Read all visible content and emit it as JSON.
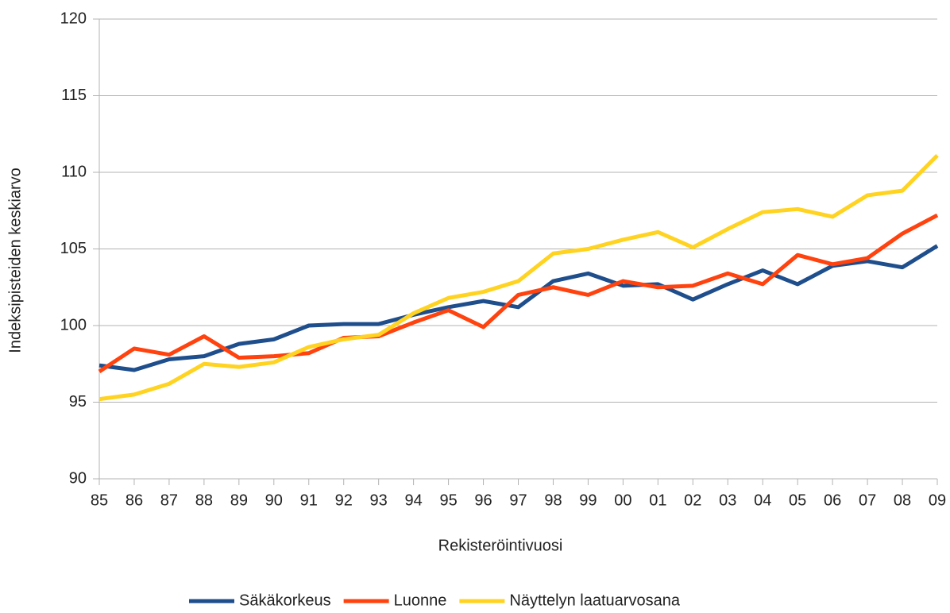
{
  "chart_data": {
    "type": "line",
    "x_label": "Rekisteröintivuosi",
    "y_label": "Indeksipisteiden keskiarvo",
    "categories": [
      "85",
      "86",
      "87",
      "88",
      "89",
      "90",
      "91",
      "92",
      "93",
      "94",
      "95",
      "96",
      "97",
      "98",
      "99",
      "00",
      "01",
      "02",
      "03",
      "04",
      "05",
      "06",
      "07",
      "08",
      "09"
    ],
    "series": [
      {
        "name": "Säkäkorkeus",
        "color": "#1f4e8c",
        "values": [
          97.4,
          97.1,
          97.8,
          98.0,
          98.8,
          99.1,
          100.0,
          100.1,
          100.1,
          100.7,
          101.2,
          101.6,
          101.2,
          102.9,
          103.4,
          102.6,
          102.7,
          101.7,
          102.7,
          103.6,
          102.7,
          103.9,
          104.2,
          103.8,
          105.2
        ]
      },
      {
        "name": "Luonne",
        "color": "#ff420e",
        "values": [
          97.0,
          98.5,
          98.1,
          99.3,
          97.9,
          98.0,
          98.2,
          99.2,
          99.3,
          100.2,
          101.0,
          99.9,
          102.0,
          102.5,
          102.0,
          102.9,
          102.5,
          102.6,
          103.4,
          102.7,
          104.6,
          104.0,
          104.4,
          106.0,
          107.2
        ]
      },
      {
        "name": "Näyttelyn laatuarvosana",
        "color": "#ffd320",
        "values": [
          95.2,
          95.5,
          96.2,
          97.5,
          97.3,
          97.6,
          98.6,
          99.1,
          99.4,
          100.8,
          101.8,
          102.2,
          102.9,
          104.7,
          105.0,
          105.6,
          106.1,
          105.1,
          106.3,
          107.4,
          107.6,
          107.1,
          108.5,
          108.8,
          111.1
        ]
      }
    ],
    "ylim": [
      90,
      120
    ],
    "yticks": [
      90,
      95,
      100,
      105,
      110,
      115,
      120
    ],
    "grid": true,
    "legend": "bottom"
  }
}
